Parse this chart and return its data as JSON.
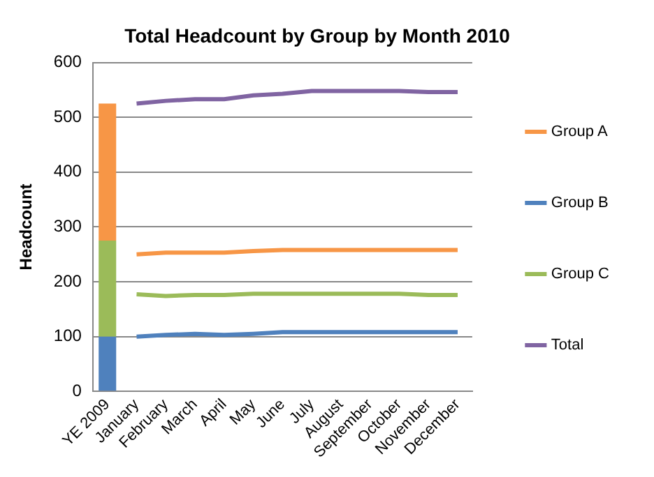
{
  "chart_data": {
    "type": "line",
    "title": "Total Headcount by Group by Month 2010",
    "ylabel": "Headcount",
    "categories": [
      "YE 2009",
      "January",
      "February",
      "March",
      "April",
      "May",
      "June",
      "July",
      "August",
      "September",
      "October",
      "November",
      "December"
    ],
    "stacked": true,
    "grid": "y",
    "legend": "right",
    "ylim": [
      0,
      600
    ],
    "yticks": [
      0,
      100,
      200,
      300,
      400,
      500,
      600
    ],
    "series": [
      {
        "type": "bar",
        "color": "#4f81bd",
        "values": [
          100,
          null,
          null,
          null,
          null,
          null,
          null,
          null,
          null,
          null,
          null,
          null,
          null
        ]
      },
      {
        "type": "bar",
        "color": "#9bbb59",
        "values": [
          175,
          null,
          null,
          null,
          null,
          null,
          null,
          null,
          null,
          null,
          null,
          null,
          null
        ]
      },
      {
        "type": "bar",
        "color": "#f79646",
        "values": [
          250,
          null,
          null,
          null,
          null,
          null,
          null,
          null,
          null,
          null,
          null,
          null,
          null
        ]
      },
      {
        "name": "Group A",
        "color": "#f79646",
        "values": [
          null,
          250,
          253,
          253,
          253,
          256,
          258,
          258,
          258,
          258,
          258,
          258,
          258
        ]
      },
      {
        "name": "Group B",
        "color": "#4f81bd",
        "values": [
          null,
          100,
          103,
          105,
          103,
          105,
          108,
          108,
          108,
          108,
          108,
          108,
          108
        ]
      },
      {
        "name": "Group C",
        "color": "#9bbb59",
        "values": [
          null,
          177,
          174,
          176,
          176,
          178,
          178,
          178,
          178,
          178,
          178,
          176,
          176
        ]
      },
      {
        "name": "Total",
        "color": "#8064a2",
        "values": [
          null,
          525,
          530,
          533,
          533,
          540,
          543,
          548,
          548,
          548,
          548,
          546,
          546
        ]
      }
    ]
  }
}
